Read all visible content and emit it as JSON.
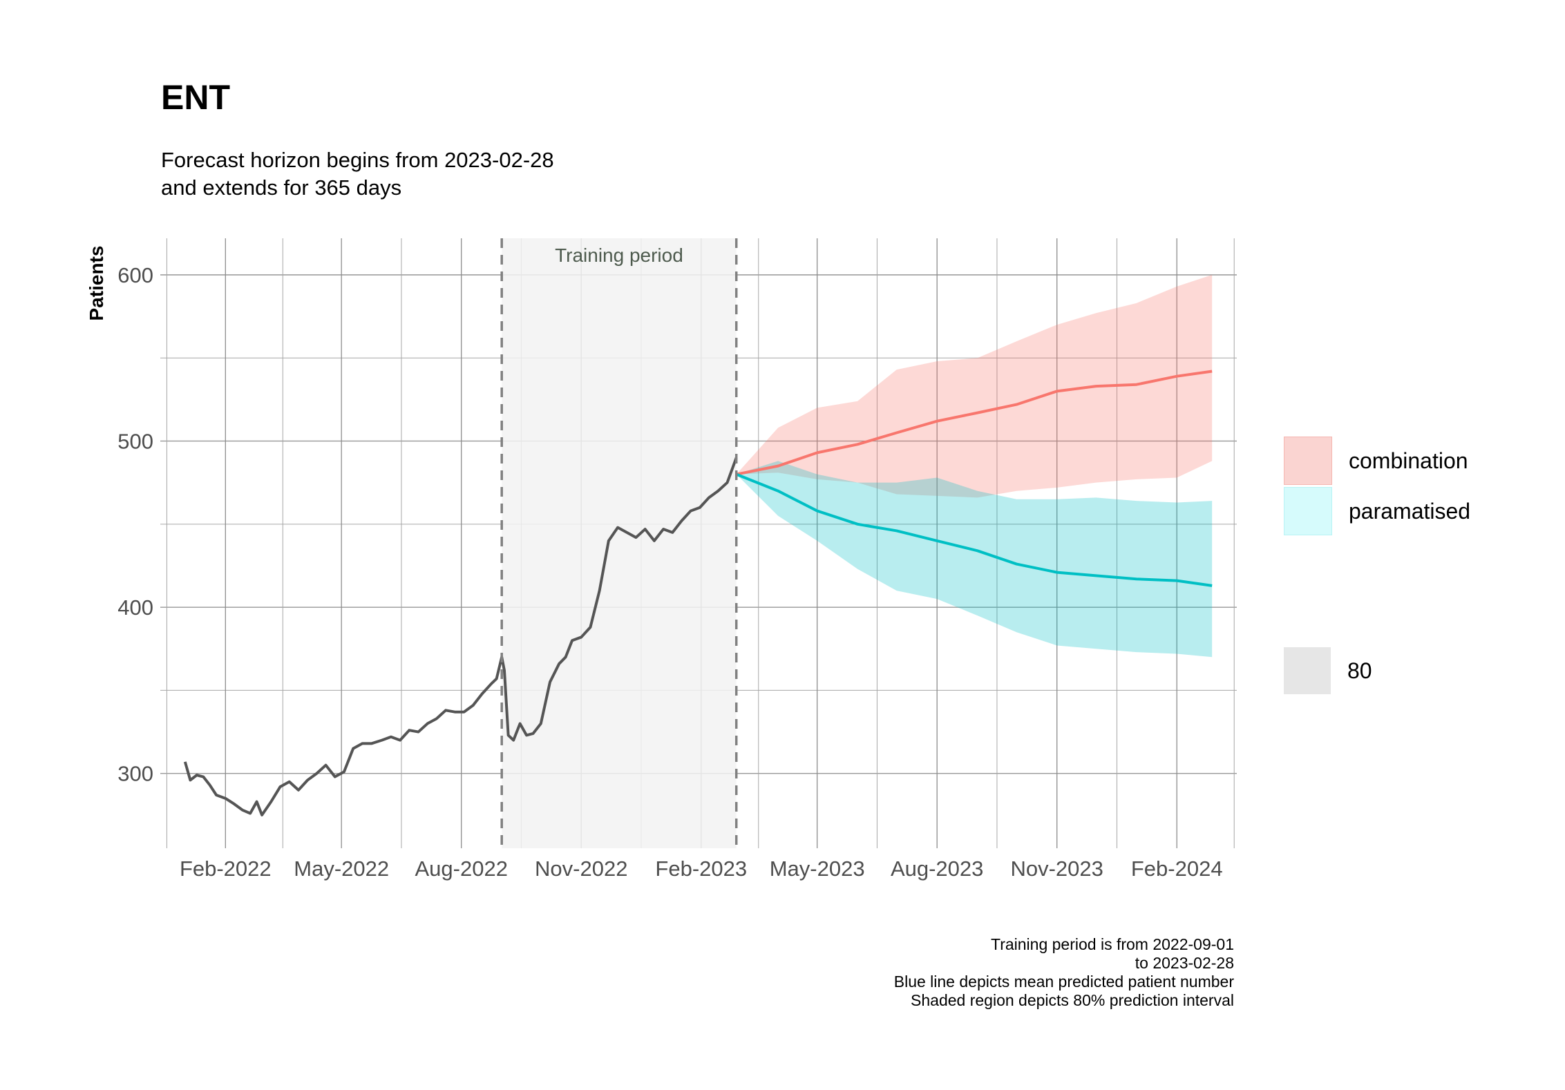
{
  "title": "ENT",
  "subtitle_line1": "Forecast horizon begins from 2023-02-28",
  "subtitle_line2": "and extends for 365 days",
  "caption": {
    "line1": "Training period is from 2022-09-01",
    "line2": "to 2023-02-28",
    "line3": "Blue line depicts mean predicted patient number",
    "line4": "Shaded region depicts 80% prediction interval"
  },
  "legend": {
    "combination": "combination",
    "paramatised": "paramatised",
    "level": "80"
  },
  "chart_data": {
    "type": "line",
    "ylabel": "Patients",
    "xlabel": "",
    "xlim": [
      "2021-12-13",
      "2024-03-18"
    ],
    "ylim": [
      255,
      622
    ],
    "y_ticks": [
      300,
      400,
      500,
      600
    ],
    "x_tick_labels": [
      "Feb-2022",
      "May-2022",
      "Aug-2022",
      "Nov-2022",
      "Feb-2023",
      "May-2023",
      "Aug-2023",
      "Nov-2023",
      "Feb-2024"
    ],
    "x_tick_dates": [
      "2022-02-01",
      "2022-05-01",
      "2022-08-01",
      "2022-11-01",
      "2023-02-01",
      "2023-05-01",
      "2023-08-01",
      "2023-11-01",
      "2024-02-01"
    ],
    "grid": true,
    "training_period": {
      "start": "2022-09-01",
      "end": "2023-02-28",
      "label": "Training period"
    },
    "colors": {
      "observed": "#555555",
      "combination": "#F8766D",
      "paramatised": "#00BFC4",
      "training_shade": "#F2F2F2"
    },
    "observed": {
      "x": [
        "2022-01-01",
        "2022-01-05",
        "2022-01-10",
        "2022-01-15",
        "2022-01-20",
        "2022-01-25",
        "2022-02-01",
        "2022-02-07",
        "2022-02-14",
        "2022-02-20",
        "2022-02-25",
        "2022-03-01",
        "2022-03-08",
        "2022-03-15",
        "2022-03-22",
        "2022-03-29",
        "2022-04-05",
        "2022-04-12",
        "2022-04-19",
        "2022-04-26",
        "2022-05-03",
        "2022-05-10",
        "2022-05-17",
        "2022-05-24",
        "2022-06-01",
        "2022-06-08",
        "2022-06-15",
        "2022-06-22",
        "2022-06-29",
        "2022-07-06",
        "2022-07-13",
        "2022-07-20",
        "2022-07-27",
        "2022-08-03",
        "2022-08-10",
        "2022-08-17",
        "2022-08-24",
        "2022-08-28",
        "2022-09-01",
        "2022-09-03",
        "2022-09-06",
        "2022-09-10",
        "2022-09-15",
        "2022-09-20",
        "2022-09-25",
        "2022-10-01",
        "2022-10-08",
        "2022-10-15",
        "2022-10-20",
        "2022-10-25",
        "2022-11-01",
        "2022-11-08",
        "2022-11-15",
        "2022-11-22",
        "2022-11-29",
        "2022-12-06",
        "2022-12-13",
        "2022-12-20",
        "2022-12-27",
        "2023-01-03",
        "2023-01-10",
        "2023-01-17",
        "2023-01-24",
        "2023-01-31",
        "2023-02-07",
        "2023-02-14",
        "2023-02-21",
        "2023-02-28"
      ],
      "y": [
        307,
        296,
        299,
        298,
        293,
        287,
        285,
        282,
        278,
        276,
        283,
        275,
        283,
        292,
        295,
        290,
        296,
        300,
        305,
        298,
        301,
        315,
        318,
        318,
        320,
        322,
        320,
        326,
        325,
        330,
        333,
        338,
        337,
        337,
        341,
        348,
        354,
        357,
        370,
        362,
        323,
        320,
        330,
        323,
        324,
        330,
        355,
        366,
        370,
        380,
        382,
        388,
        410,
        440,
        448,
        445,
        442,
        447,
        440,
        447,
        445,
        452,
        458,
        460,
        466,
        470,
        475,
        490
      ]
    },
    "forecast_dates": [
      "2023-02-28",
      "2023-04-01",
      "2023-05-01",
      "2023-06-01",
      "2023-07-01",
      "2023-08-01",
      "2023-09-01",
      "2023-10-01",
      "2023-11-01",
      "2023-12-01",
      "2024-01-01",
      "2024-02-01",
      "2024-02-28"
    ],
    "series": [
      {
        "name": "combination",
        "mean": [
          480,
          485,
          493,
          498,
          505,
          512,
          517,
          522,
          530,
          533,
          534,
          539,
          542
        ],
        "lower": [
          480,
          481,
          477,
          475,
          468,
          467,
          466,
          470,
          472,
          475,
          477,
          478,
          488
        ],
        "upper": [
          480,
          508,
          520,
          524,
          543,
          548,
          550,
          560,
          570,
          577,
          583,
          593,
          600
        ]
      },
      {
        "name": "paramatised",
        "mean": [
          480,
          470,
          458,
          450,
          446,
          440,
          434,
          426,
          421,
          419,
          417,
          416,
          413
        ],
        "lower": [
          480,
          455,
          440,
          423,
          410,
          405,
          395,
          385,
          377,
          375,
          373,
          372,
          370
        ],
        "upper": [
          480,
          488,
          480,
          475,
          475,
          478,
          470,
          465,
          465,
          466,
          464,
          463,
          464
        ]
      }
    ]
  }
}
